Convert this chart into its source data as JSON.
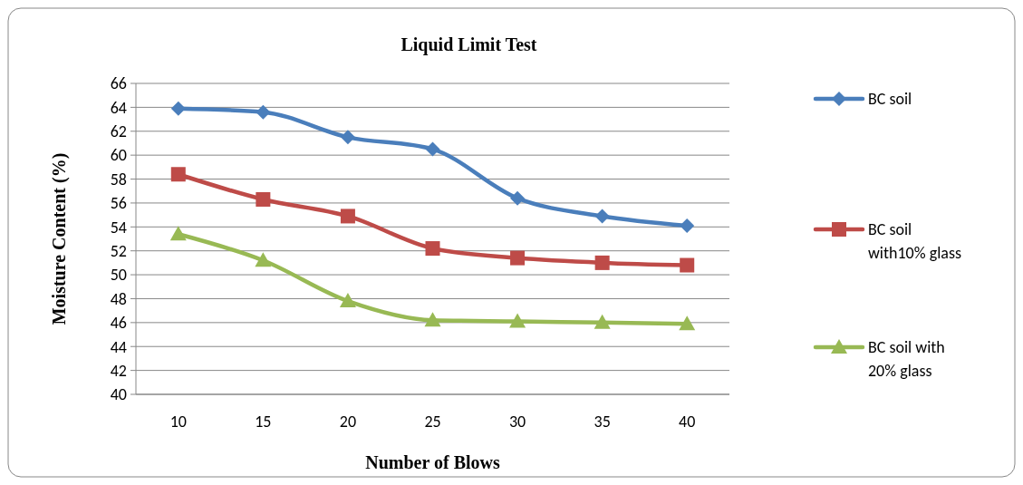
{
  "chart_data": {
    "type": "line",
    "title": "Liquid Limit Test",
    "xlabel": "Number of Blows",
    "ylabel": "Moisture Content (%)",
    "categories": [
      "10",
      "15",
      "20",
      "25",
      "30",
      "35",
      "40"
    ],
    "series": [
      {
        "name": "BC soil",
        "color": "#4a7ebb",
        "marker": "diamond",
        "values": [
          63.9,
          63.6,
          61.5,
          60.5,
          56.4,
          54.9,
          54.1
        ]
      },
      {
        "name": "BC soil with10% glass",
        "color": "#be4b48",
        "marker": "square",
        "values": [
          58.4,
          56.3,
          54.9,
          52.2,
          51.4,
          51.0,
          50.8
        ]
      },
      {
        "name": "BC soil with 20% glass",
        "color": "#98b954",
        "marker": "triangle",
        "values": [
          53.4,
          51.2,
          47.8,
          46.2,
          46.1,
          46.0,
          45.9
        ]
      }
    ],
    "ylim": [
      40,
      66
    ],
    "yticks": [
      40,
      42,
      44,
      46,
      48,
      50,
      52,
      54,
      56,
      58,
      60,
      62,
      64,
      66
    ],
    "grid": "y",
    "legend": "right"
  }
}
